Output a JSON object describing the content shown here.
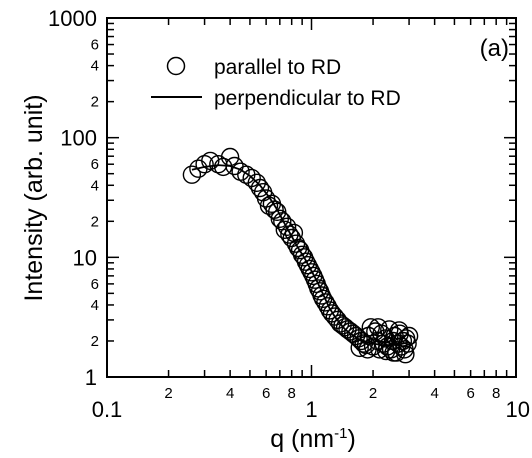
{
  "chart_data": {
    "type": "scatter",
    "panel_label": "(a)",
    "xlabel": "q (nm",
    "xlabel_sup": "-1",
    "xlabel_tail": ")",
    "ylabel": "Intensity (arb. unit)",
    "xscale": "log",
    "yscale": "log",
    "xlim": [
      0.1,
      10
    ],
    "ylim": [
      1,
      1000
    ],
    "legend_position": "top-right",
    "x_major_ticks": [
      {
        "value": 0.1,
        "label": "0.1"
      },
      {
        "value": 1,
        "label": "1"
      },
      {
        "value": 10,
        "label": "10"
      }
    ],
    "x_minor_labels": [
      {
        "value": 0.2,
        "label": "2"
      },
      {
        "value": 0.4,
        "label": "4"
      },
      {
        "value": 0.6,
        "label": "6"
      },
      {
        "value": 0.8,
        "label": "8"
      },
      {
        "value": 2,
        "label": "2"
      },
      {
        "value": 4,
        "label": "4"
      },
      {
        "value": 6,
        "label": "6"
      },
      {
        "value": 8,
        "label": "8"
      }
    ],
    "y_major_ticks": [
      {
        "value": 1,
        "label": "1"
      },
      {
        "value": 10,
        "label": "10"
      },
      {
        "value": 100,
        "label": "100"
      },
      {
        "value": 1000,
        "label": "1000"
      }
    ],
    "y_minor_labels": [
      {
        "value": 2,
        "label": "2"
      },
      {
        "value": 4,
        "label": "4"
      },
      {
        "value": 6,
        "label": "6"
      },
      {
        "value": 20,
        "label": "2"
      },
      {
        "value": 40,
        "label": "4"
      },
      {
        "value": 60,
        "label": "6"
      },
      {
        "value": 200,
        "label": "2"
      },
      {
        "value": 400,
        "label": "4"
      },
      {
        "value": 600,
        "label": "6"
      }
    ],
    "series": [
      {
        "name": "parallel to RD",
        "marker": "open-circle",
        "points": [
          [
            0.26,
            49
          ],
          [
            0.28,
            55
          ],
          [
            0.3,
            60
          ],
          [
            0.32,
            64
          ],
          [
            0.35,
            60
          ],
          [
            0.37,
            57
          ],
          [
            0.4,
            69
          ],
          [
            0.42,
            58
          ],
          [
            0.45,
            52
          ],
          [
            0.48,
            49
          ],
          [
            0.51,
            46
          ],
          [
            0.54,
            42
          ],
          [
            0.56,
            38
          ],
          [
            0.58,
            35
          ],
          [
            0.6,
            31
          ],
          [
            0.62,
            27
          ],
          [
            0.64,
            28
          ],
          [
            0.66,
            25
          ],
          [
            0.68,
            24
          ],
          [
            0.7,
            21
          ],
          [
            0.72,
            20
          ],
          [
            0.74,
            17
          ],
          [
            0.76,
            18
          ],
          [
            0.78,
            15.5
          ],
          [
            0.8,
            14.5
          ],
          [
            0.82,
            16
          ],
          [
            0.84,
            13
          ],
          [
            0.86,
            12
          ],
          [
            0.88,
            11.5
          ],
          [
            0.9,
            10.5
          ],
          [
            0.92,
            10
          ],
          [
            0.94,
            9.2
          ],
          [
            0.96,
            8.6
          ],
          [
            0.98,
            8
          ],
          [
            1.0,
            7.5
          ],
          [
            1.02,
            7
          ],
          [
            1.04,
            6.5
          ],
          [
            1.06,
            6
          ],
          [
            1.08,
            5.5
          ],
          [
            1.1,
            5.2
          ],
          [
            1.12,
            4.8
          ],
          [
            1.14,
            4.5
          ],
          [
            1.17,
            4.2
          ],
          [
            1.2,
            3.9
          ],
          [
            1.23,
            3.6
          ],
          [
            1.26,
            3.4
          ],
          [
            1.3,
            3.2
          ],
          [
            1.34,
            3.0
          ],
          [
            1.38,
            2.8
          ],
          [
            1.42,
            2.7
          ],
          [
            1.46,
            2.6
          ],
          [
            1.5,
            2.5
          ],
          [
            1.55,
            2.4
          ],
          [
            1.6,
            2.3
          ],
          [
            1.65,
            2.2
          ],
          [
            1.7,
            2.1
          ],
          [
            1.75,
            2.0
          ],
          [
            1.8,
            1.9
          ],
          [
            1.85,
            1.85
          ],
          [
            1.9,
            2.2
          ],
          [
            1.95,
            2.6
          ],
          [
            2.0,
            1.8
          ],
          [
            2.05,
            2.4
          ],
          [
            2.1,
            2.0
          ],
          [
            2.15,
            1.7
          ],
          [
            2.2,
            2.3
          ],
          [
            2.25,
            1.9
          ],
          [
            2.3,
            2.1
          ],
          [
            2.35,
            1.8
          ],
          [
            2.4,
            2.5
          ],
          [
            2.45,
            1.7
          ],
          [
            2.5,
            2.0
          ],
          [
            2.55,
            2.2
          ],
          [
            2.6,
            1.6
          ],
          [
            2.65,
            1.9
          ],
          [
            2.7,
            2.3
          ],
          [
            2.75,
            1.8
          ],
          [
            2.8,
            2.0
          ],
          [
            2.85,
            1.7
          ],
          [
            2.9,
            2.1
          ],
          [
            2.95,
            1.9
          ],
          [
            3.0,
            2.2
          ],
          [
            1.72,
            1.75
          ],
          [
            1.88,
            1.7
          ],
          [
            2.12,
            2.6
          ],
          [
            2.32,
            1.65
          ],
          [
            2.52,
            1.6
          ],
          [
            2.68,
            2.45
          ],
          [
            2.88,
            1.55
          ]
        ]
      },
      {
        "name": "perpendicular to RD",
        "marker": "line",
        "points": [
          [
            0.26,
            54
          ],
          [
            0.3,
            57
          ],
          [
            0.35,
            59
          ],
          [
            0.4,
            58
          ],
          [
            0.45,
            54
          ],
          [
            0.5,
            48
          ],
          [
            0.56,
            40
          ],
          [
            0.62,
            32
          ],
          [
            0.68,
            25
          ],
          [
            0.74,
            19
          ],
          [
            0.8,
            15
          ],
          [
            0.86,
            12
          ],
          [
            0.92,
            10
          ],
          [
            0.98,
            8.2
          ],
          [
            1.04,
            6.8
          ],
          [
            1.1,
            5.6
          ],
          [
            1.16,
            4.6
          ],
          [
            1.22,
            3.8
          ],
          [
            1.3,
            3.2
          ],
          [
            1.38,
            2.8
          ],
          [
            1.46,
            2.5
          ],
          [
            1.55,
            2.3
          ],
          [
            1.65,
            2.15
          ],
          [
            1.75,
            2.0
          ],
          [
            1.85,
            1.95
          ],
          [
            2.0,
            1.9
          ],
          [
            2.2,
            1.85
          ],
          [
            2.4,
            1.85
          ],
          [
            2.6,
            1.85
          ],
          [
            2.8,
            1.9
          ],
          [
            3.0,
            1.95
          ]
        ]
      }
    ]
  }
}
